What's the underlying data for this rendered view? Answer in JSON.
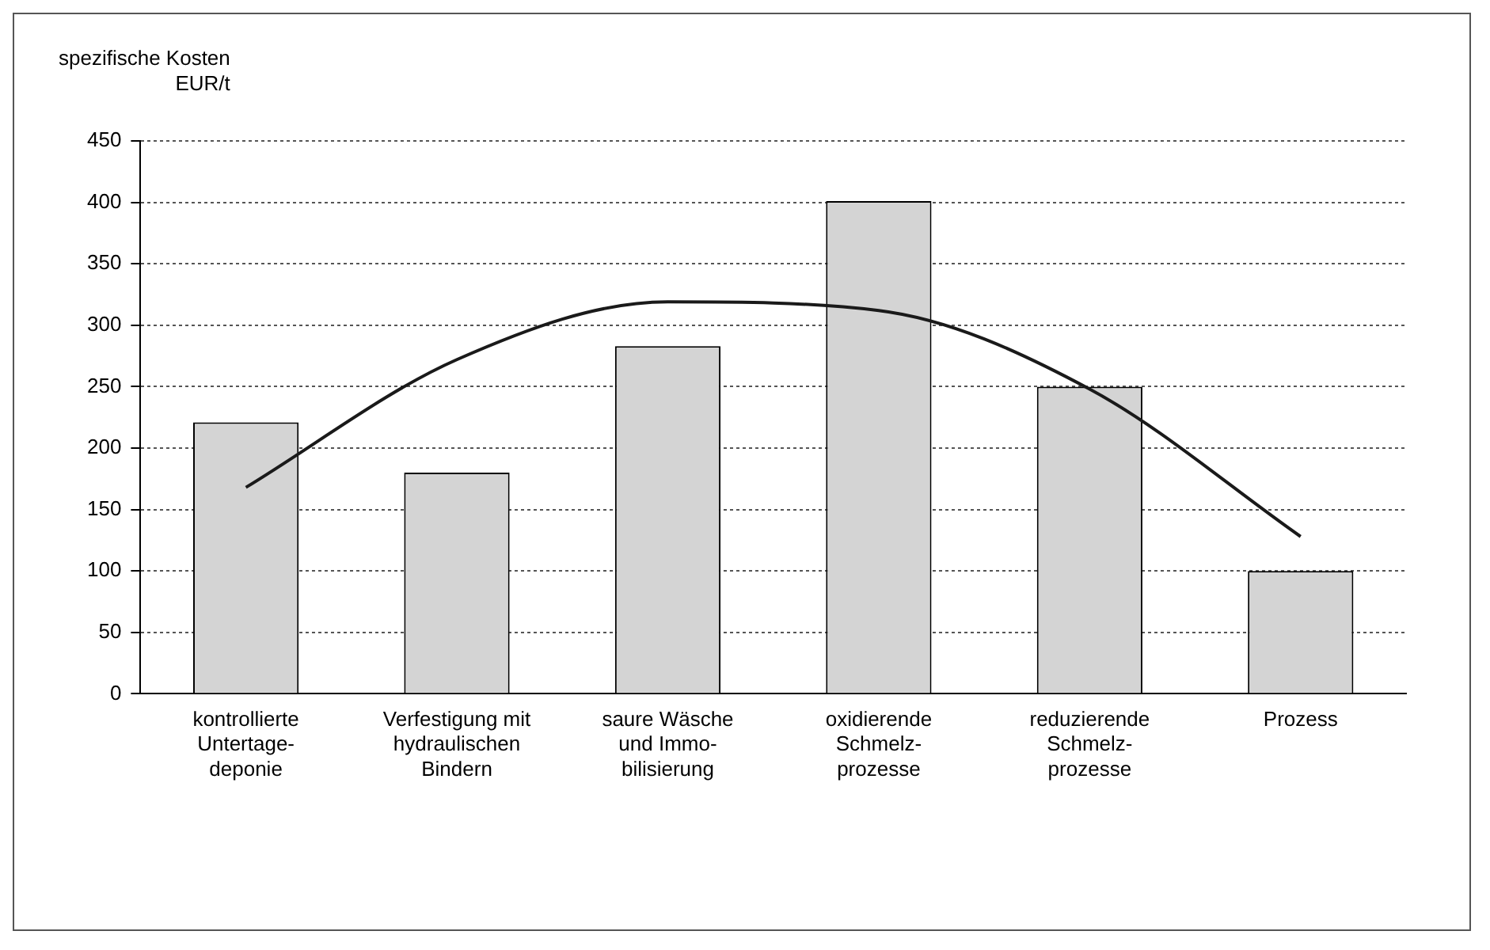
{
  "chart_data": {
    "type": "bar",
    "ylabel": "spezifische Kosten\nEUR/t",
    "categories": [
      "kontrollierte\nUntertage-\ndeponie",
      "Verfestigung mit\nhydraulischen\nBindern",
      "saure Wäsche\nund Immo-\nbilisierung",
      "oxidierende\nSchmelz-\nprozesse",
      "reduzierende\nSchmelz-\nprozesse",
      "Prozess"
    ],
    "series": [
      {
        "color": "#d4d4d4",
        "values": [
          221,
          180,
          283,
          401,
          250,
          100
        ]
      },
      {
        "type": "line",
        "color": "#1a1a1a",
        "x": [
          "kontrollierte\nUntertage-\ndeponie",
          "Verfestigung mit\nhydraulischen\nBindern",
          "saure Wäsche\nund Immo-\nbilisierung",
          "oxidierende\nSchmelz-\nprozesse",
          "reduzierende\nSchmelz-\nprozesse",
          "Prozess"
        ],
        "values": [
          168,
          272,
          319,
          312,
          248,
          128
        ]
      }
    ],
    "ylim": [
      0,
      450
    ],
    "yticks": [
      0,
      50,
      100,
      150,
      200,
      250,
      300,
      350,
      400,
      450
    ],
    "grid": "y",
    "legend": false,
    "marker": "none",
    "line_style": "solid"
  }
}
